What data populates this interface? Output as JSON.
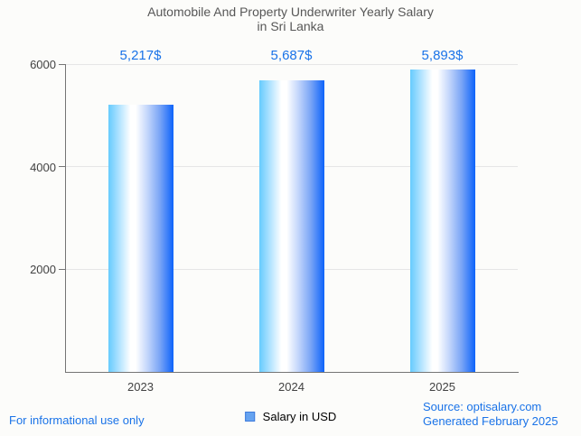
{
  "title": {
    "line1": "Automobile And Property Underwriter Yearly Salary",
    "line2": "in Sri Lanka"
  },
  "chart_data": {
    "type": "bar",
    "title": "Automobile And Property Underwriter Yearly Salary in Sri Lanka",
    "categories": [
      "2023",
      "2024",
      "2025"
    ],
    "values": [
      5217,
      5687,
      5893
    ],
    "value_labels": [
      "5,217$",
      "5,687$",
      "5,893$"
    ],
    "xlabel": "",
    "ylabel": "",
    "ylim": [
      0,
      6000
    ],
    "yticks": [
      2000,
      4000,
      6000
    ],
    "grid": true,
    "legend_position": "bottom",
    "legend_entries": [
      "Salary in USD"
    ],
    "bar_gradient_left": "#66cbfe",
    "bar_gradient_middle": "#ffffff",
    "bar_gradient_right": "#0d63fa"
  },
  "legend": {
    "label": "Salary in USD",
    "swatch_color": "#66a3f0"
  },
  "footer": {
    "left": "For informational use only",
    "source": "Source: optisalary.com",
    "generated": "Generated February 2025"
  },
  "colors": {
    "value_label": "#1a73e8",
    "footer_text": "#1a73e8",
    "axis": "#757575",
    "gridline": "#e6e6e6",
    "tick_label": "#424242",
    "title": "#575757",
    "background": "#fcfcfa"
  }
}
